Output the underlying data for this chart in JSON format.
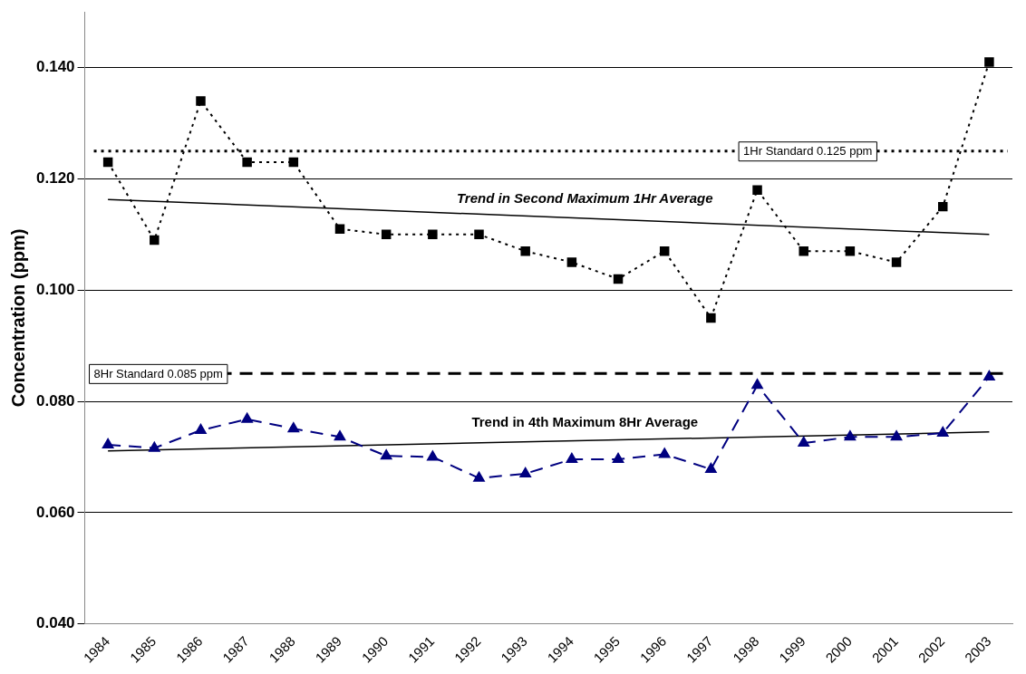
{
  "chart_data": {
    "type": "line",
    "ylabel": "Concentration (ppm)",
    "categories": [
      "1984",
      "1985",
      "1986",
      "1987",
      "1988",
      "1989",
      "1990",
      "1991",
      "1992",
      "1993",
      "1994",
      "1995",
      "1996",
      "1997",
      "1998",
      "1999",
      "2000",
      "2001",
      "2002",
      "2003"
    ],
    "series": [
      {
        "color": "#000000",
        "marker": "square",
        "line_style": "dotted",
        "values": [
          0.123,
          0.109,
          0.134,
          0.123,
          0.123,
          0.111,
          0.11,
          0.11,
          0.11,
          0.107,
          0.105,
          0.102,
          0.107,
          0.095,
          0.118,
          0.107,
          0.107,
          0.105,
          0.115,
          0.141
        ]
      },
      {
        "color": "#000080",
        "marker": "triangle",
        "line_style": "dashed",
        "values": [
          0.0722,
          0.0716,
          0.0748,
          0.0768,
          0.0751,
          0.0736,
          0.0702,
          0.07,
          0.0662,
          0.067,
          0.0696,
          0.0696,
          0.0705,
          0.0678,
          0.0829,
          0.0725,
          0.0736,
          0.0736,
          0.0743,
          0.0844
        ]
      },
      {
        "type": "line",
        "name": "Trend in Second Maximum 1Hr Average",
        "color": "#000000",
        "marker": "none",
        "line_style": "solid",
        "values": [
          0.1163,
          null,
          null,
          null,
          null,
          null,
          null,
          null,
          null,
          null,
          null,
          null,
          null,
          null,
          null,
          null,
          null,
          null,
          null,
          0.11
        ]
      },
      {
        "type": "line",
        "name": "Trend in 4th Maximum 8Hr Average",
        "color": "#000000",
        "marker": "none",
        "line_style": "solid",
        "values": [
          0.0711,
          null,
          null,
          null,
          null,
          null,
          null,
          null,
          null,
          null,
          null,
          null,
          null,
          null,
          null,
          null,
          null,
          null,
          null,
          0.0745
        ]
      }
    ],
    "ref_lines": [
      {
        "axis": "y",
        "value": 0.125,
        "label": "1Hr Standard 0.125 ppm",
        "color": "#000000",
        "line_style": "dotted"
      },
      {
        "axis": "y",
        "value": 0.085,
        "label": "8Hr Standard 0.085 ppm",
        "color": "#000000",
        "line_style": "dashed"
      }
    ],
    "ylim": [
      0.04,
      0.15
    ],
    "yticks": [
      {
        "value": 0.04,
        "label": "0.040"
      },
      {
        "value": 0.06,
        "label": "0.060"
      },
      {
        "value": 0.08,
        "label": "0.080"
      },
      {
        "value": 0.1,
        "label": "0.100"
      },
      {
        "value": 0.12,
        "label": "0.120"
      },
      {
        "value": 0.14,
        "label": "0.140"
      }
    ],
    "grid": "y",
    "legend": false
  }
}
